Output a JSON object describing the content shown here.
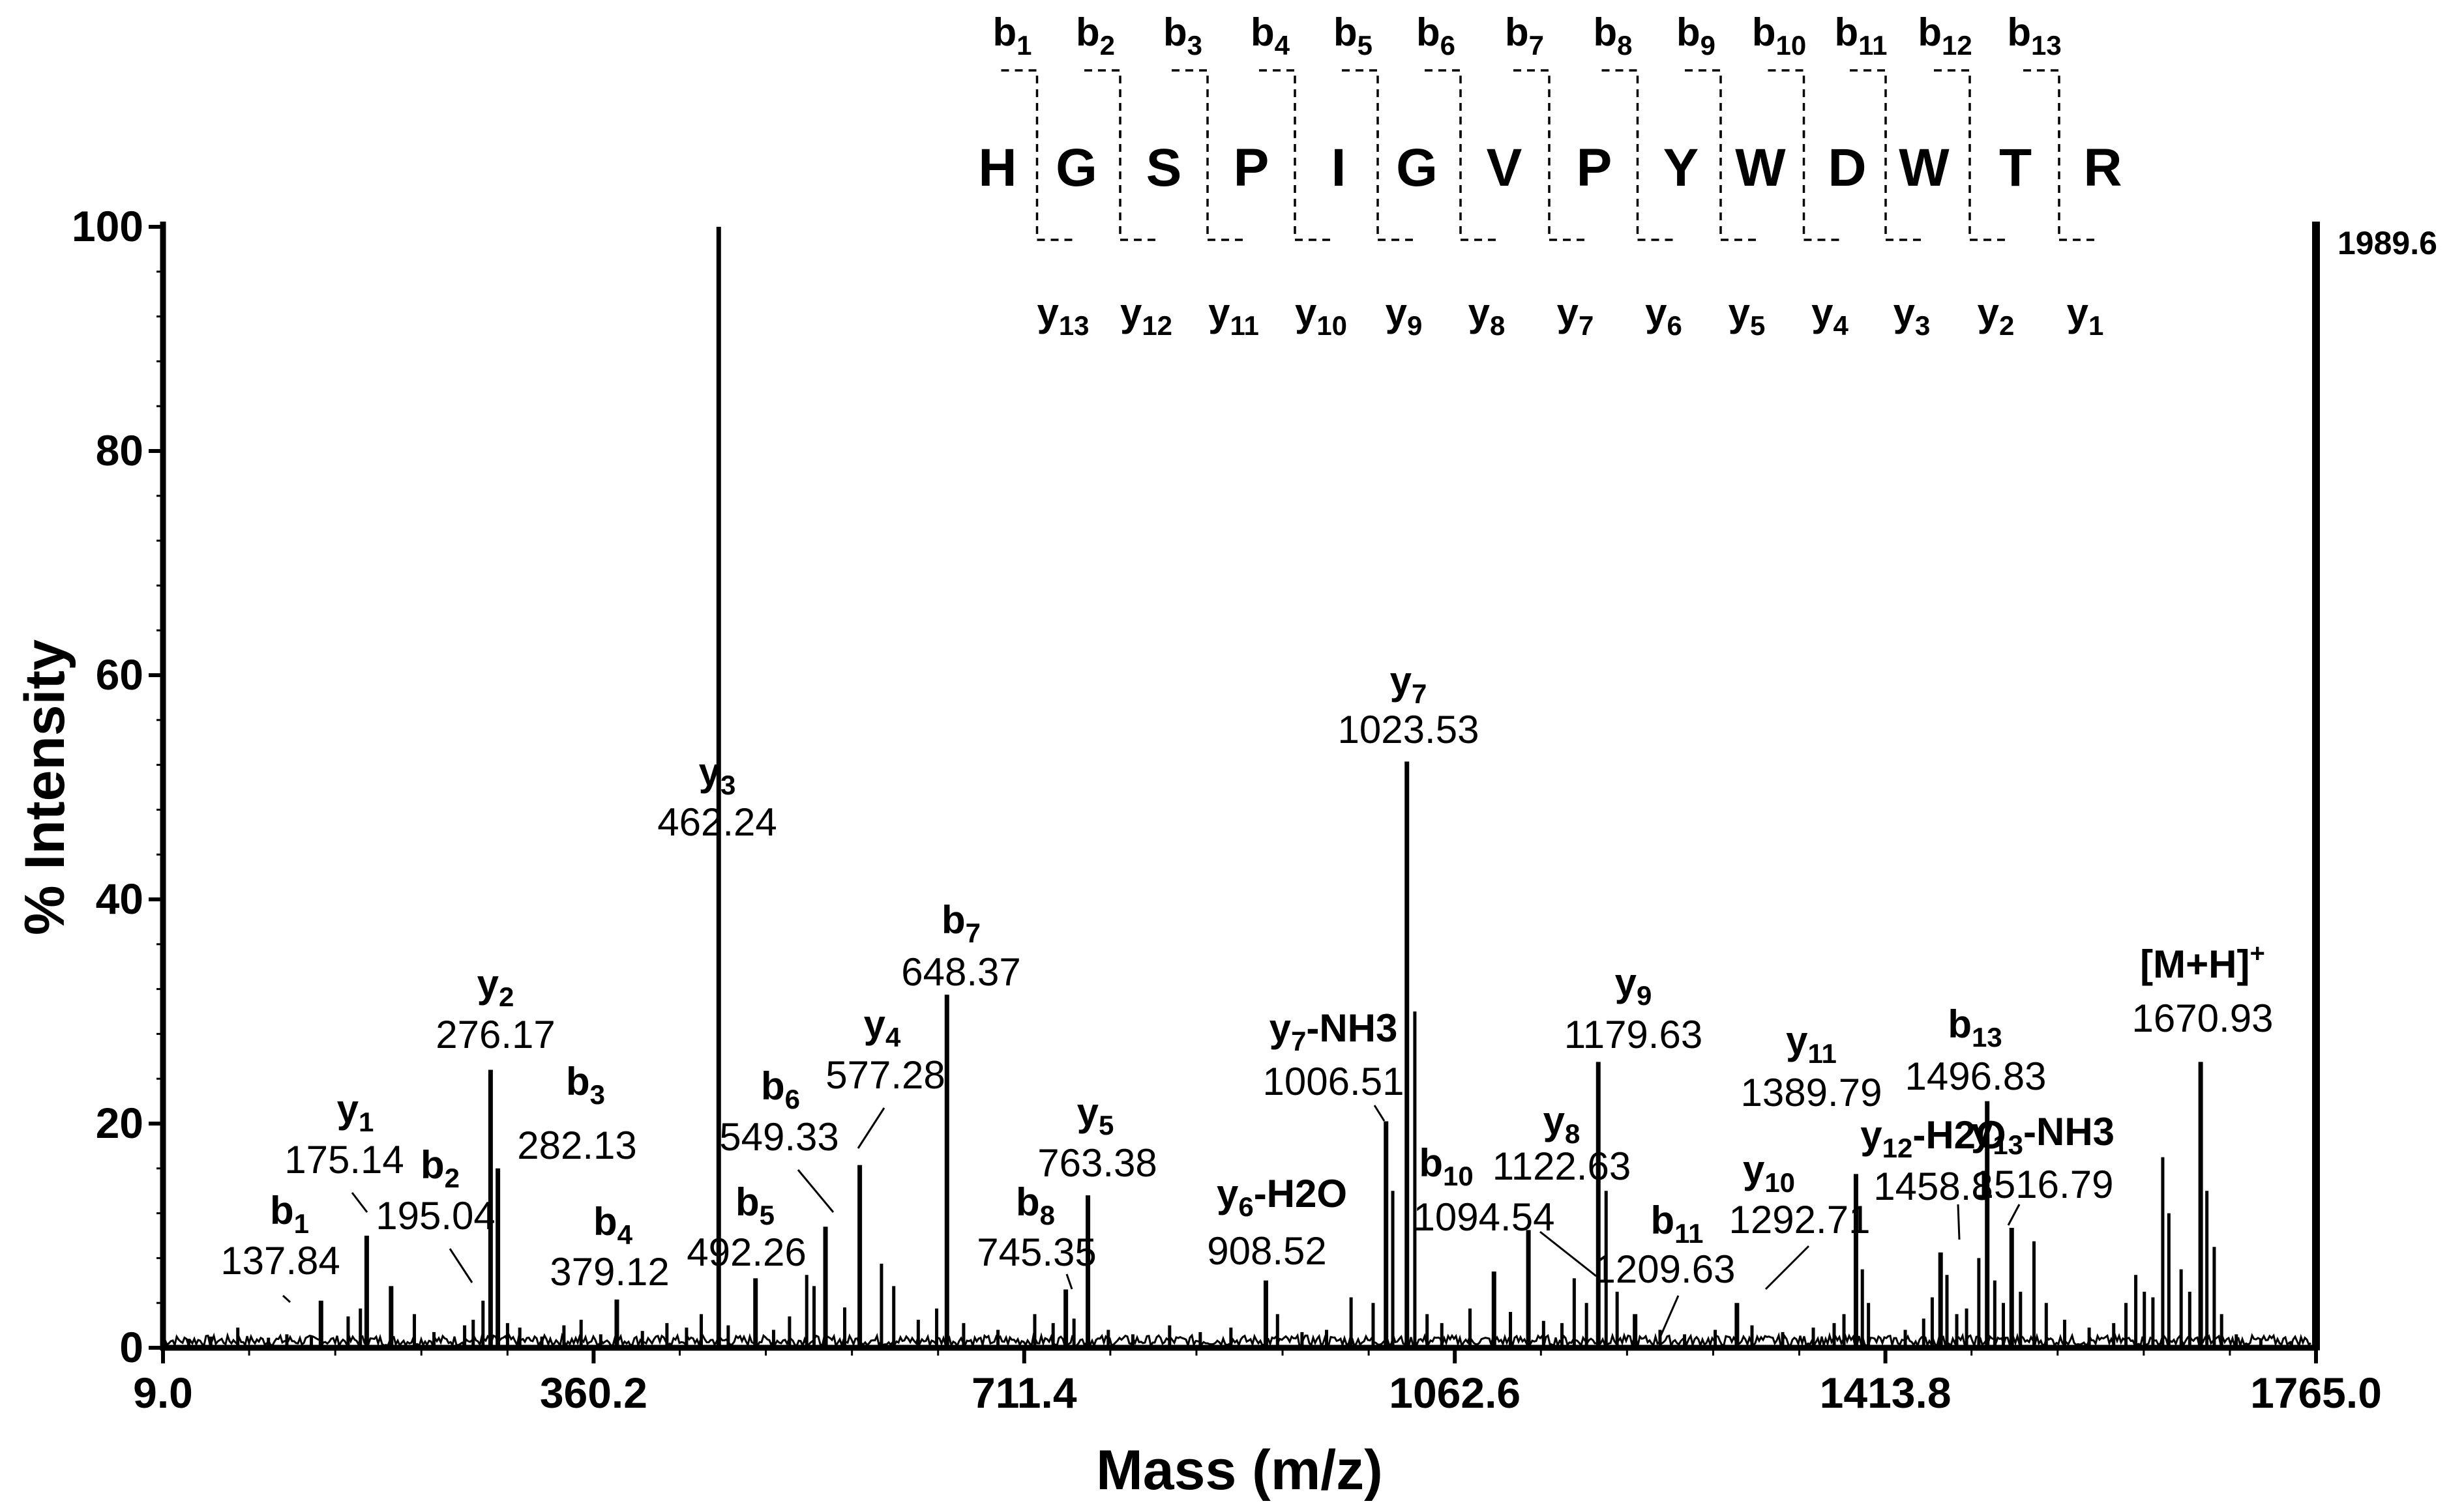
{
  "chart_data": {
    "type": "bar",
    "title": "",
    "xlabel": "Mass (m/z)",
    "ylabel": "% Intensity",
    "xlim": [
      9.0,
      1765.0
    ],
    "ylim": [
      0,
      100
    ],
    "x_ticks": [
      "9.0",
      "360.2",
      "711.4",
      "1062.6",
      "1413.8",
      "1765.0"
    ],
    "y_ticks": [
      "0",
      "20",
      "40",
      "60",
      "80",
      "100"
    ],
    "max_intensity_label": "1989.6",
    "sequence": [
      "H",
      "G",
      "S",
      "P",
      "I",
      "G",
      "V",
      "P",
      "Y",
      "W",
      "D",
      "W",
      "T",
      "R"
    ],
    "b_fragments": [
      {
        "ion": "b",
        "sub": "1"
      },
      {
        "ion": "b",
        "sub": "2"
      },
      {
        "ion": "b",
        "sub": "3"
      },
      {
        "ion": "b",
        "sub": "4"
      },
      {
        "ion": "b",
        "sub": "5"
      },
      {
        "ion": "b",
        "sub": "6"
      },
      {
        "ion": "b",
        "sub": "7"
      },
      {
        "ion": "b",
        "sub": "8"
      },
      {
        "ion": "b",
        "sub": "9"
      },
      {
        "ion": "b",
        "sub": "10"
      },
      {
        "ion": "b",
        "sub": "11"
      },
      {
        "ion": "b",
        "sub": "12"
      },
      {
        "ion": "b",
        "sub": "13"
      }
    ],
    "y_fragments": [
      {
        "ion": "y",
        "sub": "13"
      },
      {
        "ion": "y",
        "sub": "12"
      },
      {
        "ion": "y",
        "sub": "11"
      },
      {
        "ion": "y",
        "sub": "10"
      },
      {
        "ion": "y",
        "sub": "9"
      },
      {
        "ion": "y",
        "sub": "8"
      },
      {
        "ion": "y",
        "sub": "7"
      },
      {
        "ion": "y",
        "sub": "6"
      },
      {
        "ion": "y",
        "sub": "5"
      },
      {
        "ion": "y",
        "sub": "4"
      },
      {
        "ion": "y",
        "sub": "3"
      },
      {
        "ion": "y",
        "sub": "2"
      },
      {
        "ion": "y",
        "sub": "1"
      }
    ],
    "peaks": [
      {
        "mz": 137.84,
        "intensity": 4.2,
        "ion": "b",
        "sub": "1",
        "suffix": "",
        "mz_label": "137.84"
      },
      {
        "mz": 175.14,
        "intensity": 10.0,
        "ion": "y",
        "sub": "1",
        "suffix": "",
        "mz_label": "175.14"
      },
      {
        "mz": 195.04,
        "intensity": 5.5,
        "ion": "b",
        "sub": "2",
        "suffix": "",
        "mz_label": "195.04"
      },
      {
        "mz": 276.17,
        "intensity": 24.8,
        "ion": "y",
        "sub": "2",
        "suffix": "",
        "mz_label": "276.17"
      },
      {
        "mz": 282.13,
        "intensity": 16.0,
        "ion": "b",
        "sub": "3",
        "suffix": "",
        "mz_label": "282.13"
      },
      {
        "mz": 379.12,
        "intensity": 4.3,
        "ion": "b",
        "sub": "4",
        "suffix": "",
        "mz_label": "379.12"
      },
      {
        "mz": 462.24,
        "intensity": 100.0,
        "ion": "y",
        "sub": "3",
        "suffix": "",
        "mz_label": "462.24"
      },
      {
        "mz": 492.26,
        "intensity": 6.2,
        "ion": "b",
        "sub": "5",
        "suffix": "",
        "mz_label": "492.26"
      },
      {
        "mz": 549.33,
        "intensity": 10.8,
        "ion": "b",
        "sub": "6",
        "suffix": "",
        "mz_label": "549.33"
      },
      {
        "mz": 577.28,
        "intensity": 16.3,
        "ion": "y",
        "sub": "4",
        "suffix": "",
        "mz_label": "577.28"
      },
      {
        "mz": 648.37,
        "intensity": 31.5,
        "ion": "b",
        "sub": "7",
        "suffix": "",
        "mz_label": "648.37"
      },
      {
        "mz": 745.35,
        "intensity": 5.2,
        "ion": "b",
        "sub": "8",
        "suffix": "",
        "mz_label": "745.35"
      },
      {
        "mz": 763.38,
        "intensity": 13.6,
        "ion": "y",
        "sub": "5",
        "suffix": "",
        "mz_label": "763.38"
      },
      {
        "mz": 908.52,
        "intensity": 6.0,
        "ion": "y",
        "sub": "6",
        "suffix": "-H2O",
        "mz_label": "908.52"
      },
      {
        "mz": 1006.51,
        "intensity": 20.2,
        "ion": "y",
        "sub": "7",
        "suffix": "-NH3",
        "mz_label": "1006.51"
      },
      {
        "mz": 1023.53,
        "intensity": 52.3,
        "ion": "y",
        "sub": "7",
        "suffix": "",
        "mz_label": "1023.53"
      },
      {
        "mz": 1094.54,
        "intensity": 6.8,
        "ion": "b",
        "sub": "10",
        "suffix": "",
        "mz_label": "1094.54"
      },
      {
        "mz": 1122.63,
        "intensity": 10.5,
        "ion": "y",
        "sub": "8",
        "suffix": "",
        "mz_label": "1122.63"
      },
      {
        "mz": 1179.63,
        "intensity": 25.5,
        "ion": "y",
        "sub": "9",
        "suffix": "",
        "mz_label": "1179.63"
      },
      {
        "mz": 1209.63,
        "intensity": 3.0,
        "ion": "b",
        "sub": "11",
        "suffix": "",
        "mz_label": "1209.63"
      },
      {
        "mz": 1292.71,
        "intensity": 4.0,
        "ion": "y",
        "sub": "10",
        "suffix": "",
        "mz_label": "1292.71"
      },
      {
        "mz": 1389.79,
        "intensity": 15.5,
        "ion": "y",
        "sub": "11",
        "suffix": "",
        "mz_label": "1389.79"
      },
      {
        "mz": 1458.8,
        "intensity": 8.5,
        "ion": "y",
        "sub": "12",
        "suffix": "-H2O",
        "mz_label": "1458.8"
      },
      {
        "mz": 1496.83,
        "intensity": 22.0,
        "ion": "b",
        "sub": "13",
        "suffix": "",
        "mz_label": "1496.83"
      },
      {
        "mz": 1516.79,
        "intensity": 10.7,
        "ion": "y",
        "sub": "13",
        "suffix": "-NH3",
        "mz_label": "1516.79"
      },
      {
        "mz": 1670.93,
        "intensity": 25.5,
        "ion": "[M+H]",
        "sub": "",
        "suffix": "+",
        "mz_label": "1670.93"
      }
    ],
    "minor_peaks": [
      {
        "mz": 30.0,
        "intensity": 0.8
      },
      {
        "mz": 48.0,
        "intensity": 1.0
      },
      {
        "mz": 70.0,
        "intensity": 1.8
      },
      {
        "mz": 95.0,
        "intensity": 0.9
      },
      {
        "mz": 110.0,
        "intensity": 1.2
      },
      {
        "mz": 130.0,
        "intensity": 1.0
      },
      {
        "mz": 160.0,
        "intensity": 2.8
      },
      {
        "mz": 170.0,
        "intensity": 3.5
      },
      {
        "mz": 214.0,
        "intensity": 3.0
      },
      {
        "mz": 230.0,
        "intensity": 1.4
      },
      {
        "mz": 255.0,
        "intensity": 2.0
      },
      {
        "mz": 262.0,
        "intensity": 2.5
      },
      {
        "mz": 270.0,
        "intensity": 4.2
      },
      {
        "mz": 290.0,
        "intensity": 2.2
      },
      {
        "mz": 300.0,
        "intensity": 1.8
      },
      {
        "mz": 318.0,
        "intensity": 1.0
      },
      {
        "mz": 336.0,
        "intensity": 2.0
      },
      {
        "mz": 350.0,
        "intensity": 2.5
      },
      {
        "mz": 366.0,
        "intensity": 1.2
      },
      {
        "mz": 400.0,
        "intensity": 1.5
      },
      {
        "mz": 420.0,
        "intensity": 2.2
      },
      {
        "mz": 436.0,
        "intensity": 1.8
      },
      {
        "mz": 448.0,
        "intensity": 3.0
      },
      {
        "mz": 470.0,
        "intensity": 2.0
      },
      {
        "mz": 507.0,
        "intensity": 1.6
      },
      {
        "mz": 520.0,
        "intensity": 2.8
      },
      {
        "mz": 534.0,
        "intensity": 6.5
      },
      {
        "mz": 540.0,
        "intensity": 5.5
      },
      {
        "mz": 565.0,
        "intensity": 3.6
      },
      {
        "mz": 595.0,
        "intensity": 7.5
      },
      {
        "mz": 605.0,
        "intensity": 5.5
      },
      {
        "mz": 625.0,
        "intensity": 2.5
      },
      {
        "mz": 640.0,
        "intensity": 3.5
      },
      {
        "mz": 662.0,
        "intensity": 2.2
      },
      {
        "mz": 690.0,
        "intensity": 1.6
      },
      {
        "mz": 720.0,
        "intensity": 3.0
      },
      {
        "mz": 735.0,
        "intensity": 2.2
      },
      {
        "mz": 752.0,
        "intensity": 2.6
      },
      {
        "mz": 780.0,
        "intensity": 1.6
      },
      {
        "mz": 800.0,
        "intensity": 1.2
      },
      {
        "mz": 830.0,
        "intensity": 2.0
      },
      {
        "mz": 855.0,
        "intensity": 1.4
      },
      {
        "mz": 880.0,
        "intensity": 1.8
      },
      {
        "mz": 918.0,
        "intensity": 3.0
      },
      {
        "mz": 938.0,
        "intensity": 1.4
      },
      {
        "mz": 958.0,
        "intensity": 1.6
      },
      {
        "mz": 978.0,
        "intensity": 4.5
      },
      {
        "mz": 996.0,
        "intensity": 4.0
      },
      {
        "mz": 1012.0,
        "intensity": 14.0
      },
      {
        "mz": 1030.0,
        "intensity": 30.0
      },
      {
        "mz": 1040.0,
        "intensity": 3.0
      },
      {
        "mz": 1052.0,
        "intensity": 2.2
      },
      {
        "mz": 1075.0,
        "intensity": 3.5
      },
      {
        "mz": 1108.0,
        "intensity": 3.2
      },
      {
        "mz": 1135.0,
        "intensity": 2.4
      },
      {
        "mz": 1150.0,
        "intensity": 2.2
      },
      {
        "mz": 1160.0,
        "intensity": 6.2
      },
      {
        "mz": 1170.0,
        "intensity": 4.0
      },
      {
        "mz": 1186.0,
        "intensity": 14.0
      },
      {
        "mz": 1195.0,
        "intensity": 5.0
      },
      {
        "mz": 1230.0,
        "intensity": 1.6
      },
      {
        "mz": 1250.0,
        "intensity": 1.2
      },
      {
        "mz": 1275.0,
        "intensity": 1.6
      },
      {
        "mz": 1305.0,
        "intensity": 2.0
      },
      {
        "mz": 1330.0,
        "intensity": 1.4
      },
      {
        "mz": 1355.0,
        "intensity": 1.8
      },
      {
        "mz": 1372.0,
        "intensity": 2.2
      },
      {
        "mz": 1380.0,
        "intensity": 3.0
      },
      {
        "mz": 1395.0,
        "intensity": 7.0
      },
      {
        "mz": 1400.0,
        "intensity": 4.0
      },
      {
        "mz": 1430.0,
        "intensity": 1.6
      },
      {
        "mz": 1445.0,
        "intensity": 2.6
      },
      {
        "mz": 1452.0,
        "intensity": 4.5
      },
      {
        "mz": 1464.0,
        "intensity": 6.5
      },
      {
        "mz": 1472.0,
        "intensity": 3.0
      },
      {
        "mz": 1480.0,
        "intensity": 3.5
      },
      {
        "mz": 1490.0,
        "intensity": 8.0
      },
      {
        "mz": 1503.0,
        "intensity": 6.0
      },
      {
        "mz": 1510.0,
        "intensity": 4.0
      },
      {
        "mz": 1524.0,
        "intensity": 5.0
      },
      {
        "mz": 1535.0,
        "intensity": 9.5
      },
      {
        "mz": 1545.0,
        "intensity": 4.0
      },
      {
        "mz": 1560.0,
        "intensity": 2.5
      },
      {
        "mz": 1580.0,
        "intensity": 1.8
      },
      {
        "mz": 1600.0,
        "intensity": 2.2
      },
      {
        "mz": 1610.0,
        "intensity": 4.0
      },
      {
        "mz": 1618.0,
        "intensity": 6.5
      },
      {
        "mz": 1625.0,
        "intensity": 5.0
      },
      {
        "mz": 1632.0,
        "intensity": 4.5
      },
      {
        "mz": 1640.0,
        "intensity": 17.0
      },
      {
        "mz": 1645.0,
        "intensity": 12.0
      },
      {
        "mz": 1655.0,
        "intensity": 7.0
      },
      {
        "mz": 1662.0,
        "intensity": 5.0
      },
      {
        "mz": 1676.0,
        "intensity": 14.0
      },
      {
        "mz": 1682.0,
        "intensity": 9.0
      },
      {
        "mz": 1688.0,
        "intensity": 3.0
      },
      {
        "mz": 1700.0,
        "intensity": 1.2
      },
      {
        "mz": 1720.0,
        "intensity": 0.8
      },
      {
        "mz": 1745.0,
        "intensity": 0.6
      }
    ]
  }
}
